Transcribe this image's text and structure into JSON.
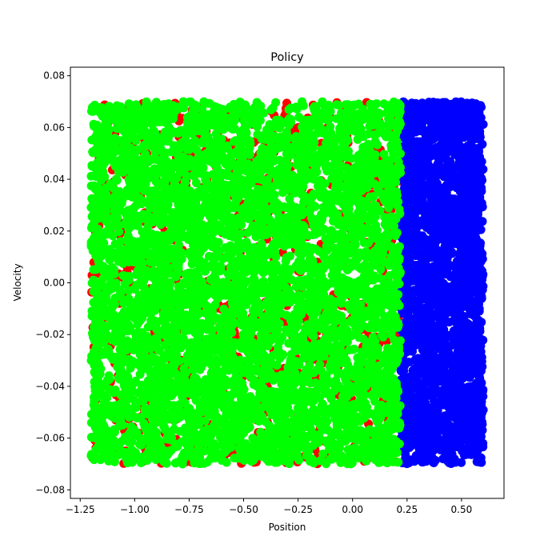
{
  "chart_data": {
    "type": "scatter",
    "title": "Policy",
    "xlabel": "Position",
    "ylabel": "Velocity",
    "xlim": [
      -1.295,
      0.695
    ],
    "ylim": [
      -0.0833,
      0.0833
    ],
    "xticks": [
      -1.25,
      -1.0,
      -0.75,
      -0.5,
      -0.25,
      0.0,
      0.25,
      0.5
    ],
    "xtick_labels": [
      "−1.25",
      "−1.00",
      "−0.75",
      "−0.50",
      "−0.25",
      "0.00",
      "0.25",
      "0.50"
    ],
    "yticks": [
      -0.08,
      -0.06,
      -0.04,
      -0.02,
      0.0,
      0.02,
      0.04,
      0.06,
      0.08
    ],
    "ytick_labels": [
      "−0.08",
      "−0.06",
      "−0.04",
      "−0.02",
      "0.00",
      "0.02",
      "0.04",
      "0.06",
      "0.08"
    ],
    "grid": false,
    "legend": "none",
    "point_region": {
      "x": [
        -1.2,
        0.6
      ],
      "y": [
        -0.07,
        0.07
      ]
    },
    "series": [
      {
        "color": "#ff0000",
        "x_range": [
          -1.2,
          0.22
        ],
        "y_range": [
          -0.07,
          0.07
        ],
        "share": "sparse, beneath green"
      },
      {
        "color": "#00ff00",
        "x_range": [
          -1.2,
          0.22
        ],
        "y_range": [
          -0.07,
          0.07
        ],
        "share": "dominant"
      },
      {
        "color": "#0000ff",
        "x_range": [
          0.22,
          0.6
        ],
        "y_range": [
          -0.07,
          0.07
        ],
        "share": "dominant"
      }
    ]
  }
}
